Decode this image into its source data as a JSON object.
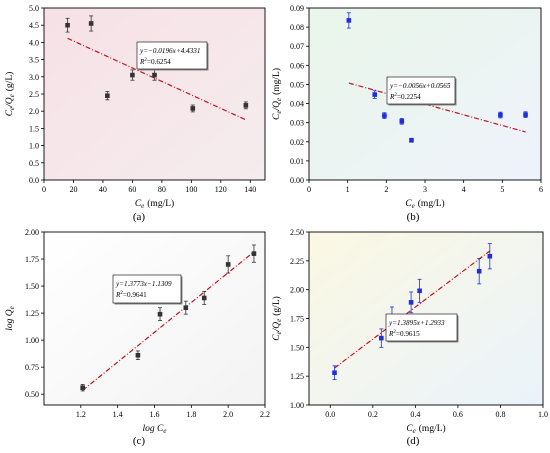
{
  "chart_data": [
    {
      "panel": "(a)",
      "type": "scatter",
      "background": [
        "#f6e1e6",
        "#f5ecee"
      ],
      "marker_color": "#333333",
      "line_color": "#c0141e",
      "xlabel_var": "C",
      "xlabel_sub": "e",
      "xlabel_unit": "(mg/L)",
      "ylabel_parts": [
        [
          "C",
          "e"
        ],
        [
          "/Q",
          "e"
        ]
      ],
      "ylabel_unit": "(g/L)",
      "xlim": [
        0,
        150
      ],
      "ylim": [
        0.0,
        5.0
      ],
      "xticks": [
        0,
        20,
        40,
        60,
        80,
        100,
        120,
        140
      ],
      "xtick_labels": [
        "0",
        "20",
        "40",
        "60",
        "80",
        "100",
        "120",
        "140"
      ],
      "yticks": [
        0,
        0.5,
        1.0,
        1.5,
        2.0,
        2.5,
        3.0,
        3.5,
        4.0,
        4.5,
        5.0
      ],
      "ytick_labels": [
        "0.0",
        "0.5",
        "1.0",
        "1.5",
        "2.0",
        "2.5",
        "3.0",
        "3.5",
        "4.0",
        "4.5",
        "5.0"
      ],
      "series": [
        {
          "x": [
            16,
            32,
            43,
            60,
            75,
            101,
            137
          ],
          "y": [
            4.5,
            4.55,
            2.45,
            3.05,
            3.05,
            2.08,
            2.17
          ],
          "err": [
            0.2,
            0.22,
            0.12,
            0.15,
            0.15,
            0.1,
            0.1
          ]
        }
      ],
      "fit": {
        "x": [
          16,
          137
        ],
        "slope": -0.0196,
        "intercept": 4.4331
      },
      "equation": "y=−0.0196x+4.4331",
      "r2_label": "R",
      "r2_value": "=0.6254"
    },
    {
      "panel": "(b)",
      "type": "scatter",
      "background": [
        "#eaf6ea",
        "#eef2fb"
      ],
      "marker_color": "#1f2fe0",
      "line_color": "#c0141e",
      "xlabel_var": "C",
      "xlabel_sub": "e",
      "xlabel_unit": "(mg/L)",
      "ylabel_parts": [
        [
          "C",
          "e"
        ],
        [
          "/Q",
          "e"
        ]
      ],
      "ylabel_unit": "(mg/L)",
      "xlim": [
        0,
        6
      ],
      "ylim": [
        0.0,
        0.09
      ],
      "xticks": [
        0,
        1,
        2,
        3,
        4,
        5,
        6
      ],
      "xtick_labels": [
        "0",
        "1",
        "2",
        "3",
        "4",
        "5",
        "6"
      ],
      "yticks": [
        0,
        0.01,
        0.02,
        0.03,
        0.04,
        0.05,
        0.06,
        0.07,
        0.08,
        0.09
      ],
      "ytick_labels": [
        "0.00",
        "0.01",
        "0.02",
        "0.03",
        "0.04",
        "0.05",
        "0.06",
        "0.07",
        "0.08",
        "0.09"
      ],
      "series": [
        {
          "x": [
            1.03,
            1.7,
            1.95,
            2.4,
            2.65,
            4.95,
            5.6
          ],
          "y": [
            0.0835,
            0.0447,
            0.0337,
            0.0307,
            0.0208,
            0.034,
            0.0342
          ],
          "err": [
            0.004,
            0.002,
            0.0015,
            0.0015,
            0.001,
            0.0015,
            0.0015
          ]
        }
      ],
      "fit": {
        "x": [
          1.03,
          5.6
        ],
        "slope": -0.0056,
        "intercept": 0.0565
      },
      "equation": "y=−0.0056x+0.0565",
      "r2_label": "R",
      "r2_value": "=0.2254"
    },
    {
      "panel": "(c)",
      "type": "scatter",
      "background": [
        "#ffffff",
        "#f3f3f3"
      ],
      "marker_color": "#333333",
      "line_color": "#c0141e",
      "xlabel_var": "log C",
      "xlabel_sub": "e",
      "xlabel_unit": "",
      "ylabel_parts": [
        [
          "log Q",
          "e"
        ]
      ],
      "ylabel_unit": "",
      "xlim": [
        1.0,
        2.2
      ],
      "ylim": [
        0.4,
        2.0
      ],
      "xticks": [
        1.2,
        1.4,
        1.6,
        1.8,
        2.0,
        2.2
      ],
      "xtick_labels": [
        "1.2",
        "1.4",
        "1.6",
        "1.8",
        "2.0",
        "2.2"
      ],
      "yticks": [
        0.5,
        0.75,
        1.0,
        1.25,
        1.5,
        1.75,
        2.0
      ],
      "ytick_labels": [
        "0.50",
        "0.75",
        "1.00",
        "1.25",
        "1.50",
        "1.75",
        "2.00"
      ],
      "series": [
        {
          "x": [
            1.21,
            1.51,
            1.63,
            1.77,
            1.87,
            2.0,
            2.14
          ],
          "y": [
            0.56,
            0.86,
            1.24,
            1.3,
            1.39,
            1.7,
            1.8
          ],
          "err": [
            0.03,
            0.04,
            0.06,
            0.06,
            0.06,
            0.08,
            0.08
          ]
        }
      ],
      "fit": {
        "x": [
          1.21,
          2.14
        ],
        "slope": 1.3773,
        "intercept": -1.1309
      },
      "equation": "y=1.3773x−1.1309",
      "r2_label": "R",
      "r2_value": "=0.9641"
    },
    {
      "panel": "(d)",
      "type": "scatter",
      "background": [
        "#fbf8e3",
        "#eaf3fb"
      ],
      "marker_color": "#1f2fe0",
      "line_color": "#c0141e",
      "xlabel_var": "C",
      "xlabel_sub": "e",
      "xlabel_unit": "(mg/L)",
      "ylabel_parts": [
        [
          "C",
          "e"
        ],
        [
          "/Q",
          "e"
        ]
      ],
      "ylabel_unit": "(g/L)",
      "xlim": [
        -0.1,
        1.0
      ],
      "ylim": [
        1.0,
        2.5
      ],
      "xticks": [
        0.0,
        0.2,
        0.4,
        0.6,
        0.8,
        1.0
      ],
      "xtick_labels": [
        "0.0",
        "0.2",
        "0.4",
        "0.6",
        "0.8",
        "1.0"
      ],
      "yticks": [
        1.0,
        1.25,
        1.5,
        1.75,
        2.0,
        2.25,
        2.5
      ],
      "ytick_labels": [
        "1.00",
        "1.25",
        "1.50",
        "1.75",
        "2.00",
        "2.25",
        "2.50"
      ],
      "series": [
        {
          "x": [
            0.02,
            0.24,
            0.29,
            0.38,
            0.42,
            0.7,
            0.75
          ],
          "y": [
            1.28,
            1.58,
            1.76,
            1.89,
            1.99,
            2.16,
            2.29
          ],
          "err": [
            0.06,
            0.08,
            0.09,
            0.09,
            0.1,
            0.11,
            0.11
          ]
        }
      ],
      "fit": {
        "x": [
          0.02,
          0.75
        ],
        "slope": 1.3895,
        "intercept": 1.2933
      },
      "equation": "y=1.3895x+1.2933",
      "r2_label": "R",
      "r2_value": "=0.9615"
    }
  ]
}
